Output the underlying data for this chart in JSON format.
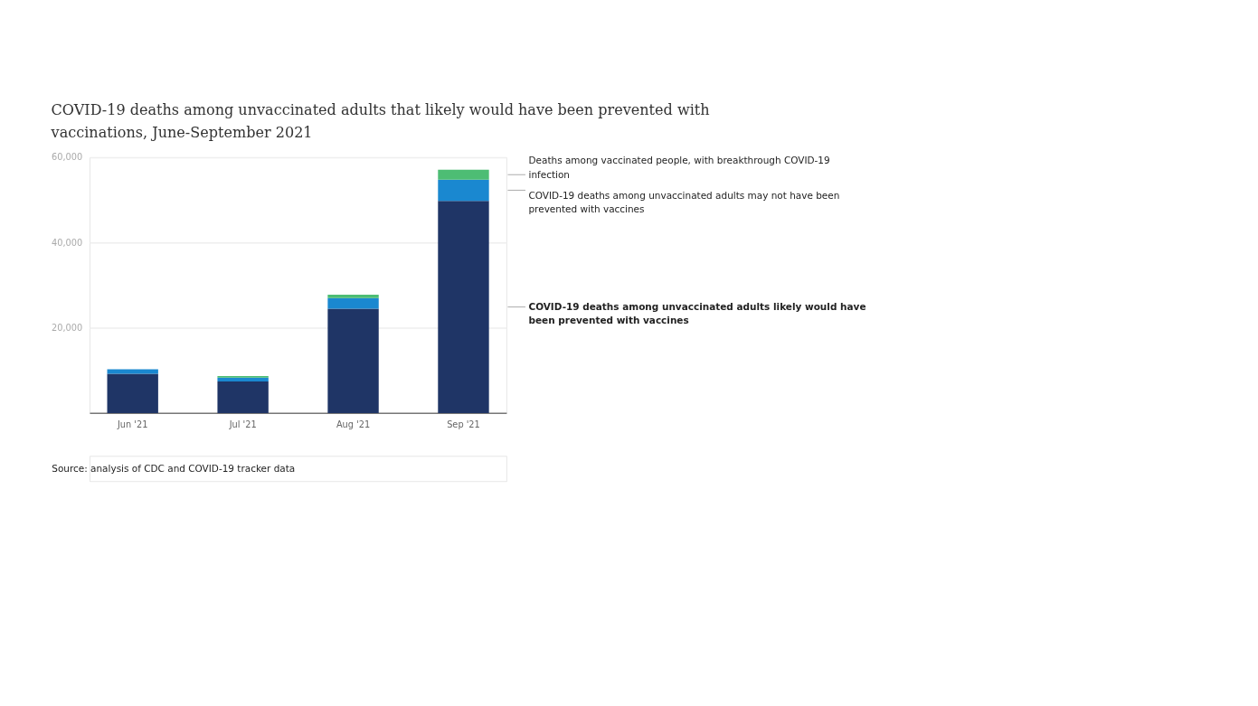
{
  "chart_data": {
    "type": "bar",
    "stacked": true,
    "title": [
      "COVID-19 deaths among unvaccinated adults that likely would have been prevented with",
      "vaccinations, June-September 2021"
    ],
    "categories": [
      "Jun '21",
      "Jul '21",
      "Aug '21",
      "Sep '21"
    ],
    "series": [
      {
        "name": "COVID-19 deaths among unvaccinated adults likely would have been prevented with vaccines",
        "color": "#1f3566",
        "values": [
          9200,
          7400,
          24500,
          49800
        ]
      },
      {
        "name": "COVID-19 deaths among unvaccinated adults may not have been prevented with vaccines",
        "color": "#1a88d0",
        "values": [
          1100,
          900,
          2500,
          5000
        ]
      },
      {
        "name": "Deaths among vaccinated people, with breakthrough COVID-19 infection",
        "color": "#4dbd74",
        "values": [
          null,
          400,
          800,
          2300
        ]
      }
    ],
    "ylim": [
      0,
      60000
    ],
    "yticks": [
      {
        "value": 20000,
        "label": "20,000"
      },
      {
        "value": 40000,
        "label": "40,000"
      },
      {
        "value": 60000,
        "label": "60,000"
      }
    ],
    "grid": "y",
    "annotations": [
      "Source: analysis of CDC and COVID-19 tracker data"
    ]
  }
}
